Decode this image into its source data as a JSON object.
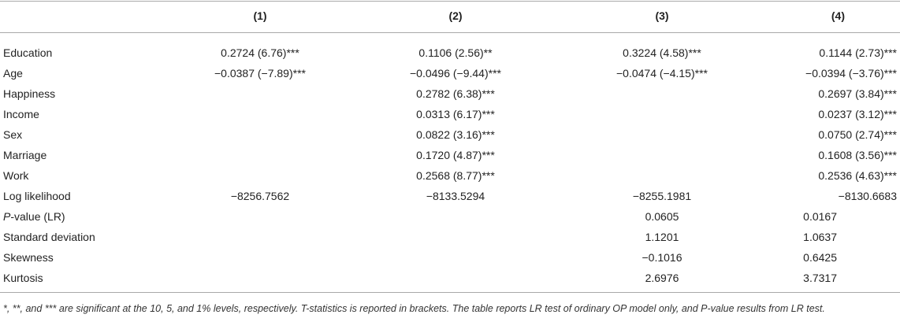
{
  "table": {
    "headers": [
      "(1)",
      "(2)",
      "(3)",
      "(4)"
    ],
    "rows": [
      {
        "label": "Education",
        "c1": "0.2724 (6.76)***",
        "c2": "0.1106 (2.56)**",
        "c3": "0.3224 (4.58)***",
        "c4": "0.1144 (2.73)***"
      },
      {
        "label": "Age",
        "c1": "−0.0387 (−7.89)***",
        "c2": "−0.0496 (−9.44)***",
        "c3": "−0.0474 (−4.15)***",
        "c4": "−0.0394 (−3.76)***"
      },
      {
        "label": "Happiness",
        "c1": "",
        "c2": "0.2782 (6.38)***",
        "c3": "",
        "c4": "0.2697 (3.84)***"
      },
      {
        "label": "Income",
        "c1": "",
        "c2": "0.0313 (6.17)***",
        "c3": "",
        "c4": "0.0237 (3.12)***"
      },
      {
        "label": "Sex",
        "c1": "",
        "c2": "0.0822 (3.16)***",
        "c3": "",
        "c4": "0.0750 (2.74)***"
      },
      {
        "label": "Marriage",
        "c1": "",
        "c2": "0.1720 (4.87)***",
        "c3": "",
        "c4": "0.1608 (3.56)***"
      },
      {
        "label": "Work",
        "c1": "",
        "c2": "0.2568 (8.77)***",
        "c3": "",
        "c4": "0.2536 (4.63)***"
      },
      {
        "label": "Log likelihood",
        "c1": "−8256.7562",
        "c2": "−8133.5294",
        "c3": "−8255.1981",
        "c4": "−8130.6683"
      },
      {
        "label_italic": "P",
        "label_rest": "-value (LR)",
        "c1": "",
        "c2": "",
        "c3": "0.0605",
        "c4": "0.0167"
      },
      {
        "label": "Standard deviation",
        "c1": "",
        "c2": "",
        "c3": "1.1201",
        "c4": "1.0637"
      },
      {
        "label": "Skewness",
        "c1": "",
        "c2": "",
        "c3": "−0.1016",
        "c4": "0.6425"
      },
      {
        "label": "Kurtosis",
        "c1": "",
        "c2": "",
        "c3": "2.6976",
        "c4": "3.7317"
      }
    ]
  },
  "note": "*, **, and *** are significant at the 10, 5, and 1% levels, respectively. T-statistics is reported in brackets. The table reports LR test of ordinary OP model only, and P-value results from LR test."
}
